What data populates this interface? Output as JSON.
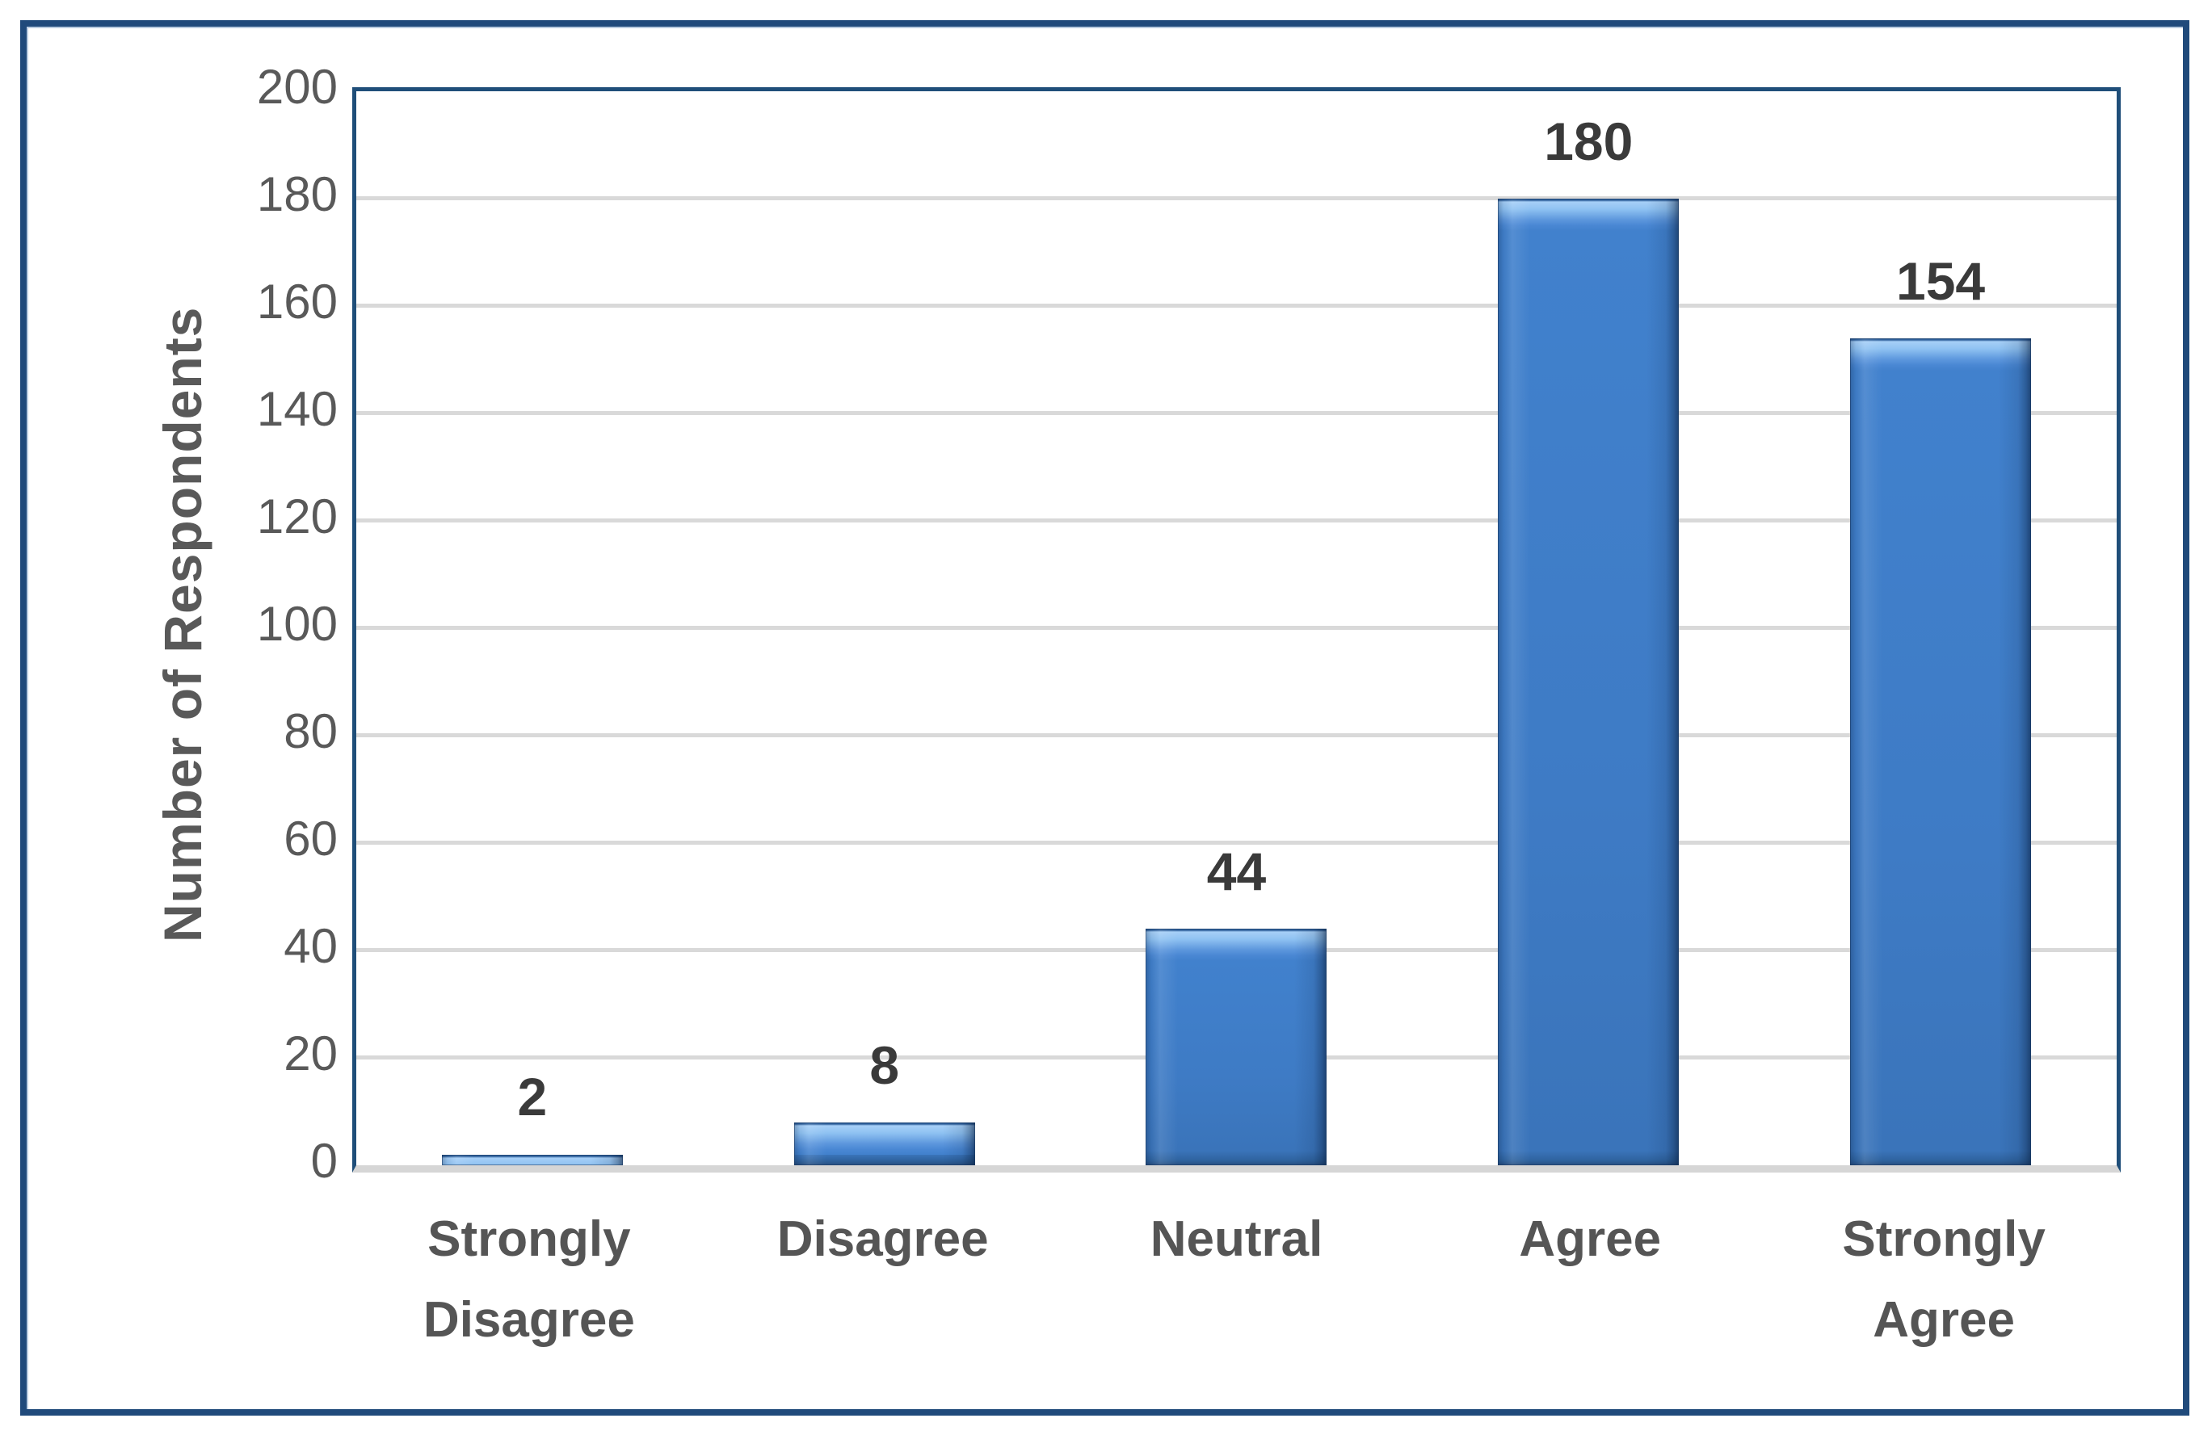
{
  "chart_data": {
    "type": "bar",
    "categories": [
      "Strongly\nDisagree",
      "Disagree",
      "Neutral",
      "Agree",
      "Strongly\nAgree"
    ],
    "values": [
      2,
      8,
      44,
      180,
      154
    ],
    "data_labels": [
      "2",
      "8",
      "44",
      "180",
      "154"
    ],
    "title": "",
    "xlabel": "",
    "ylabel": "Number of Respondents",
    "ylim": [
      0,
      200
    ],
    "ytick_step": 20,
    "yticks": [
      0,
      20,
      40,
      60,
      80,
      100,
      120,
      140,
      160,
      180,
      200
    ],
    "grid": true,
    "legend": "none",
    "colors": {
      "bar_fill": "#3E7BC5",
      "bar_highlight": "#9CC9F5",
      "bar_edge": "#1F3E66",
      "plot_border": "#1F4E79",
      "outer_frame": "#204A7B",
      "gridline": "#D9D9D9",
      "axis_line": "#D6D6D6",
      "tick_text": "#595959",
      "category_text": "#555555",
      "data_label_text": "#3A3A3A"
    }
  }
}
